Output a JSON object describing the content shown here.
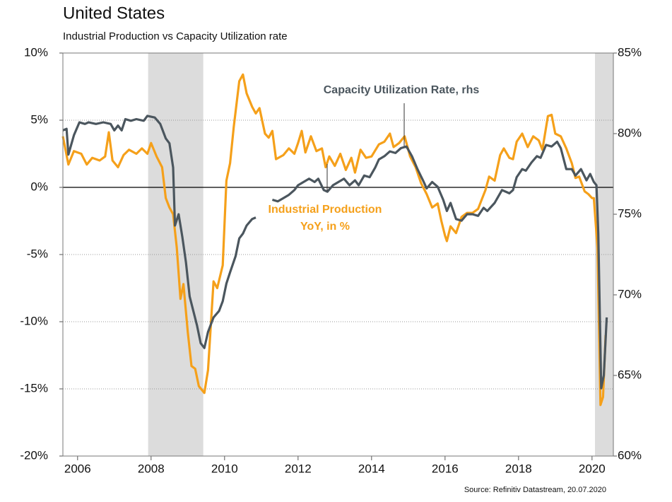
{
  "chart_data": {
    "type": "line",
    "title": "United States",
    "subtitle": "Industrial Production vs Capacity Utilization rate",
    "source": "Source: Refinitiv Datastream, 20.07.2020",
    "xlim": [
      2005.6,
      2020.58
    ],
    "xticks": [
      2006,
      2008,
      2010,
      2012,
      2014,
      2016,
      2018,
      2020
    ],
    "ylim": [
      -20,
      10
    ],
    "yticks": [
      {
        "value": -20,
        "label": "-20%"
      },
      {
        "value": -15,
        "label": "-15%"
      },
      {
        "value": -10,
        "label": "-10%"
      },
      {
        "value": -5,
        "label": "-5%"
      },
      {
        "value": 0,
        "label": "0%"
      },
      {
        "value": 5,
        "label": "5%"
      },
      {
        "value": 10,
        "label": "10%"
      }
    ],
    "y2lim": [
      60,
      85
    ],
    "y2ticks": [
      {
        "value": 60,
        "label": "60%"
      },
      {
        "value": 65,
        "label": "65%"
      },
      {
        "value": 70,
        "label": "70%"
      },
      {
        "value": 75,
        "label": "75%"
      },
      {
        "value": 80,
        "label": "80%"
      },
      {
        "value": 85,
        "label": "85%"
      }
    ],
    "grid": true,
    "shaded_ranges": [
      [
        2007.92,
        2009.42
      ],
      [
        2020.08,
        2020.58
      ]
    ],
    "series": [
      {
        "name": [
          "Industrial Production",
          "YoY, in %"
        ],
        "color": "#f5a01a",
        "axis": "y",
        "x": [
          2005.6,
          2005.75,
          2005.9,
          2006.1,
          2006.25,
          2006.4,
          2006.6,
          2006.75,
          2006.85,
          2006.95,
          2007.1,
          2007.25,
          2007.4,
          2007.6,
          2007.75,
          2007.9,
          2008.0,
          2008.15,
          2008.3,
          2008.4,
          2008.5,
          2008.6,
          2008.7,
          2008.8,
          2008.88,
          2009.0,
          2009.1,
          2009.2,
          2009.3,
          2009.45,
          2009.55,
          2009.7,
          2009.8,
          2009.95,
          2010.05,
          2010.15,
          2010.25,
          2010.4,
          2010.5,
          2010.6,
          2010.75,
          2010.85,
          2010.95,
          2011.1,
          2011.2,
          2011.3,
          2011.4,
          2011.6,
          2011.75,
          2011.9,
          2012.0,
          2012.1,
          2012.2,
          2012.35,
          2012.5,
          2012.65,
          2012.75,
          2012.85,
          2013.0,
          2013.15,
          2013.3,
          2013.45,
          2013.55,
          2013.7,
          2013.85,
          2014.0,
          2014.2,
          2014.35,
          2014.5,
          2014.6,
          2014.75,
          2014.9,
          2015.05,
          2015.2,
          2015.35,
          2015.5,
          2015.65,
          2015.8,
          2015.9,
          2016.0,
          2016.05,
          2016.15,
          2016.3,
          2016.45,
          2016.6,
          2016.75,
          2016.9,
          2017.0,
          2017.1,
          2017.2,
          2017.35,
          2017.5,
          2017.6,
          2017.75,
          2017.85,
          2017.95,
          2018.1,
          2018.25,
          2018.4,
          2018.55,
          2018.65,
          2018.8,
          2018.9,
          2019.0,
          2019.15,
          2019.3,
          2019.45,
          2019.55,
          2019.65,
          2019.8,
          2019.9,
          2020.0,
          2020.05,
          2020.15,
          2020.23,
          2020.3,
          2020.37
        ],
        "values": [
          3.8,
          1.7,
          2.7,
          2.5,
          1.7,
          2.2,
          2.0,
          2.3,
          4.1,
          2.0,
          1.5,
          2.4,
          2.8,
          2.5,
          2.9,
          2.5,
          3.3,
          2.3,
          1.5,
          -0.8,
          -1.5,
          -2.0,
          -4.5,
          -8.3,
          -7.2,
          -10.8,
          -13.3,
          -13.5,
          -14.8,
          -15.3,
          -13.6,
          -7.0,
          -7.5,
          -5.8,
          0.5,
          1.8,
          4.5,
          7.9,
          8.4,
          7.0,
          6.0,
          5.5,
          5.9,
          4.0,
          3.7,
          4.2,
          2.1,
          2.4,
          2.9,
          2.5,
          3.3,
          4.2,
          2.6,
          3.8,
          2.7,
          2.9,
          1.5,
          2.3,
          1.6,
          2.5,
          1.3,
          2.2,
          1.1,
          2.8,
          2.2,
          2.3,
          3.2,
          3.4,
          4.0,
          3.0,
          3.3,
          3.8,
          2.3,
          1.5,
          0.3,
          -0.5,
          -1.5,
          -1.2,
          -2.5,
          -3.6,
          -4.0,
          -2.9,
          -3.4,
          -2.2,
          -1.9,
          -1.9,
          -1.6,
          -0.9,
          -0.2,
          0.8,
          0.5,
          2.4,
          2.9,
          2.2,
          2.1,
          3.4,
          4.0,
          3.0,
          3.8,
          3.5,
          2.8,
          5.3,
          5.4,
          4.0,
          3.8,
          2.9,
          1.8,
          0.7,
          0.8,
          -0.3,
          -0.5,
          -0.8,
          -0.8,
          -4.5,
          -16.2,
          -15.6,
          -11.0
        ]
      },
      {
        "name": [
          "Capacity Utilization Rate, rhs"
        ],
        "color": "#4b565e",
        "axis": "y2",
        "x": [
          2005.6,
          2005.7,
          2005.75,
          2005.9,
          2006.05,
          2006.2,
          2006.3,
          2006.5,
          2006.7,
          2006.9,
          2007.0,
          2007.1,
          2007.2,
          2007.3,
          2007.45,
          2007.6,
          2007.8,
          2007.9,
          2008.1,
          2008.25,
          2008.4,
          2008.5,
          2008.6,
          2008.65,
          2008.75,
          2008.85,
          2008.95,
          2009.05,
          2009.15,
          2009.25,
          2009.35,
          2009.45,
          2009.55,
          2009.7,
          2009.85,
          2009.95,
          2010.05,
          2010.15,
          2010.3,
          2010.4,
          2010.5,
          2010.6,
          2010.75,
          2010.85,
          2011.05,
          2011.3,
          2011.45,
          2011.6,
          2011.75,
          2011.9,
          2012.0,
          2012.15,
          2012.3,
          2012.45,
          2012.55,
          2012.7,
          2012.8,
          2012.95,
          2013.1,
          2013.25,
          2013.4,
          2013.55,
          2013.65,
          2013.8,
          2013.95,
          2014.1,
          2014.2,
          2014.35,
          2014.5,
          2014.65,
          2014.8,
          2014.95,
          2015.1,
          2015.25,
          2015.4,
          2015.5,
          2015.65,
          2015.8,
          2015.95,
          2016.05,
          2016.15,
          2016.3,
          2016.45,
          2016.6,
          2016.75,
          2016.9,
          2017.05,
          2017.15,
          2017.35,
          2017.55,
          2017.75,
          2017.85,
          2017.95,
          2018.1,
          2018.2,
          2018.35,
          2018.5,
          2018.6,
          2018.75,
          2018.9,
          2019.05,
          2019.15,
          2019.3,
          2019.45,
          2019.55,
          2019.7,
          2019.85,
          2019.95,
          2020.05,
          2020.12,
          2020.17,
          2020.25,
          2020.32,
          2020.4
        ],
        "values": [
          80.2,
          80.3,
          78.7,
          79.9,
          80.7,
          80.6,
          80.7,
          80.6,
          80.7,
          80.6,
          80.2,
          80.5,
          80.2,
          80.9,
          80.8,
          80.9,
          80.8,
          81.1,
          81.0,
          80.6,
          79.7,
          79.4,
          77.9,
          74.3,
          75.0,
          73.6,
          72.0,
          69.9,
          69.0,
          68.1,
          67.0,
          66.7,
          67.7,
          68.6,
          69.0,
          69.6,
          70.7,
          71.4,
          72.4,
          73.5,
          73.8,
          74.3,
          74.7,
          74.8,
          null,
          75.9,
          75.8,
          76.0,
          76.2,
          76.5,
          76.8,
          77.0,
          77.2,
          77.0,
          77.2,
          76.5,
          76.4,
          76.8,
          77.0,
          77.2,
          76.8,
          77.1,
          76.8,
          77.4,
          77.3,
          77.9,
          78.4,
          78.6,
          78.9,
          78.8,
          79.1,
          79.2,
          78.6,
          77.8,
          77.1,
          76.6,
          77.0,
          76.7,
          75.9,
          75.2,
          75.7,
          74.7,
          74.6,
          75.0,
          75.0,
          74.9,
          75.4,
          75.2,
          75.7,
          76.5,
          76.3,
          76.5,
          77.3,
          77.8,
          77.7,
          78.2,
          78.6,
          78.5,
          79.3,
          79.2,
          79.5,
          79.1,
          77.8,
          77.8,
          77.4,
          77.8,
          77.1,
          77.5,
          77.0,
          76.8,
          73.8,
          64.2,
          65.0,
          68.6
        ]
      }
    ]
  }
}
